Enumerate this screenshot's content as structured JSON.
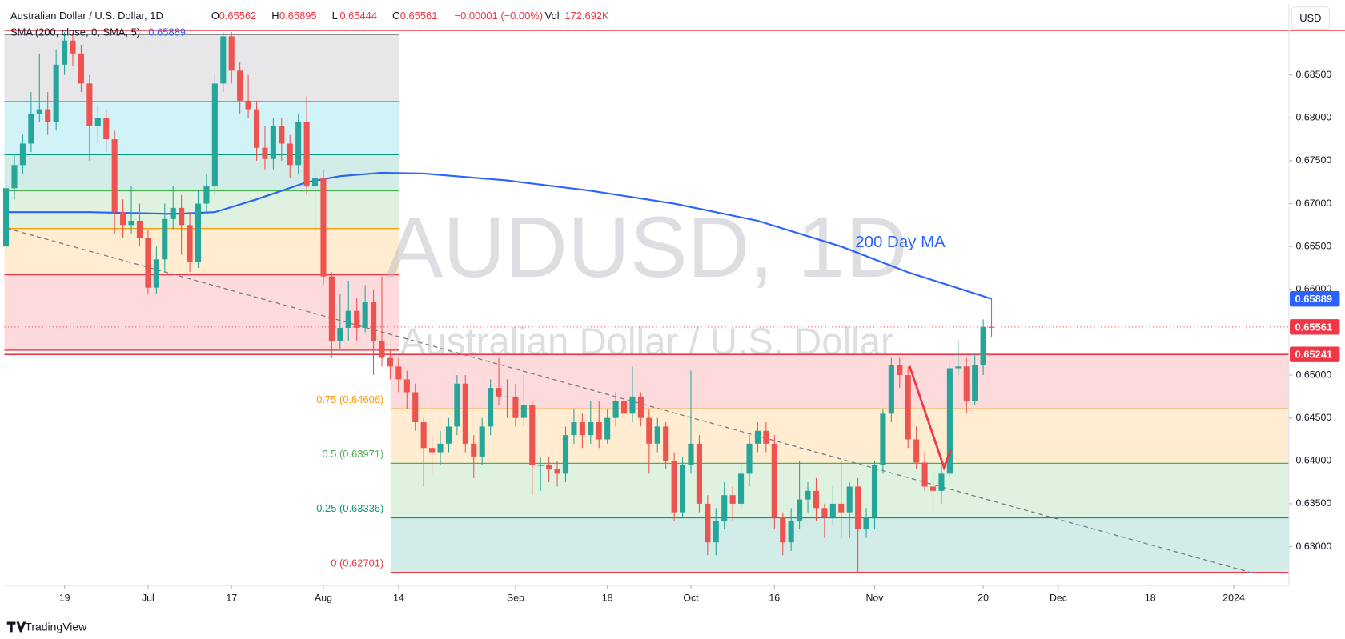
{
  "header": {
    "symbol": "Australian Dollar / U.S. Dollar, 1D",
    "ohlc": [
      {
        "label": "O",
        "value": "0.65562"
      },
      {
        "label": "H",
        "value": "0.65895"
      },
      {
        "label": "L",
        "value": "0.65444"
      },
      {
        "label": "C",
        "value": "0.65561"
      }
    ],
    "change": "−0.00001 (−0.00%)",
    "volume_label": "Vol",
    "volume": "172.692K"
  },
  "footer": {
    "brand": "TradingView"
  },
  "chart_data": {
    "type": "candlestick",
    "title": "AUDUSD, 1D",
    "subtitle": "Australian Dollar / U.S. Dollar",
    "currency": "USD",
    "xlim": [
      -0.2,
      153.6
    ],
    "xticks": [
      {
        "value": 7,
        "label": "19"
      },
      {
        "value": 17,
        "label": "Jul"
      },
      {
        "value": 27,
        "label": "17"
      },
      {
        "value": 38,
        "label": "Aug"
      },
      {
        "value": 47,
        "label": "14"
      },
      {
        "value": 61,
        "label": "Sep"
      },
      {
        "value": 72,
        "label": "18"
      },
      {
        "value": 82,
        "label": "Oct"
      },
      {
        "value": 92,
        "label": "16"
      },
      {
        "value": 104,
        "label": "Nov"
      },
      {
        "value": 117,
        "label": "20"
      },
      {
        "value": 126,
        "label": "Dec"
      },
      {
        "value": 137,
        "label": "18"
      },
      {
        "value": 147,
        "label": "2024"
      }
    ],
    "ylim": [
      0.62546,
      0.69323
    ],
    "yticks": [
      {
        "value": 0.685,
        "label": "0.68500"
      },
      {
        "value": 0.68,
        "label": "0.68000"
      },
      {
        "value": 0.675,
        "label": "0.67500"
      },
      {
        "value": 0.67,
        "label": "0.67000"
      },
      {
        "value": 0.665,
        "label": "0.66500"
      },
      {
        "value": 0.66,
        "label": "0.66000"
      },
      {
        "value": 0.65,
        "label": "0.65000"
      },
      {
        "value": 0.645,
        "label": "0.64500"
      },
      {
        "value": 0.64,
        "label": "0.64000"
      },
      {
        "value": 0.635,
        "label": "0.63500"
      },
      {
        "value": 0.63,
        "label": "0.63000"
      }
    ],
    "series": [
      {
        "name": "AUDUSD",
        "up_color": "#26a69a",
        "down_color": "#ef5350",
        "open": [
          0.665,
          0.6718,
          0.6745,
          0.677,
          0.6805,
          0.681,
          0.6795,
          0.6862,
          0.689,
          0.6875,
          0.684,
          0.679,
          0.68,
          0.6775,
          0.669,
          0.6675,
          0.668,
          0.666,
          0.6602,
          0.6635,
          0.6682,
          0.6695,
          0.6675,
          0.6632,
          0.67,
          0.672,
          0.684,
          0.6895,
          0.6855,
          0.682,
          0.681,
          0.6765,
          0.6752,
          0.679,
          0.677,
          0.6745,
          0.6795,
          0.672,
          0.673,
          0.6615,
          0.654,
          0.6555,
          0.6575,
          0.6555,
          0.6585,
          0.654,
          0.652,
          0.651,
          0.6495,
          0.648,
          0.6445,
          0.6415,
          0.641,
          0.642,
          0.644,
          0.649,
          0.642,
          0.6405,
          0.644,
          0.6485,
          0.6475,
          0.6475,
          0.645,
          0.6465,
          0.6395,
          0.6395,
          0.639,
          0.6385,
          0.643,
          0.6445,
          0.643,
          0.6445,
          0.6425,
          0.645,
          0.647,
          0.6455,
          0.6475,
          0.645,
          0.642,
          0.644,
          0.64,
          0.634,
          0.6395,
          0.642,
          0.635,
          0.6305,
          0.633,
          0.636,
          0.635,
          0.6385,
          0.642,
          0.6435,
          0.642,
          0.6335,
          0.6305,
          0.633,
          0.6355,
          0.6365,
          0.6345,
          0.6335,
          0.635,
          0.634,
          0.637,
          0.632,
          0.6335,
          0.6395,
          0.6455,
          0.6512,
          0.65,
          0.6425,
          0.6398,
          0.637,
          0.6365,
          0.6385,
          0.6508,
          0.651,
          0.647,
          0.6512,
          0.65562
        ],
        "high": [
          0.6728,
          0.6758,
          0.678,
          0.683,
          0.6875,
          0.683,
          0.688,
          0.69,
          0.69,
          0.6885,
          0.685,
          0.6815,
          0.681,
          0.6785,
          0.6705,
          0.672,
          0.67,
          0.667,
          0.665,
          0.67,
          0.672,
          0.671,
          0.669,
          0.6715,
          0.6735,
          0.685,
          0.69,
          0.69,
          0.6865,
          0.685,
          0.682,
          0.679,
          0.68,
          0.68,
          0.678,
          0.6805,
          0.6825,
          0.674,
          0.674,
          0.662,
          0.6595,
          0.661,
          0.659,
          0.6605,
          0.66,
          0.6615,
          0.653,
          0.652,
          0.6505,
          0.649,
          0.645,
          0.643,
          0.6435,
          0.645,
          0.65,
          0.65,
          0.643,
          0.645,
          0.6495,
          0.652,
          0.6495,
          0.649,
          0.65,
          0.647,
          0.6405,
          0.6405,
          0.64,
          0.644,
          0.646,
          0.6455,
          0.647,
          0.647,
          0.646,
          0.648,
          0.648,
          0.651,
          0.648,
          0.646,
          0.645,
          0.6445,
          0.641,
          0.6405,
          0.6505,
          0.643,
          0.636,
          0.6345,
          0.6375,
          0.637,
          0.64,
          0.643,
          0.6445,
          0.6445,
          0.643,
          0.634,
          0.6345,
          0.64,
          0.6375,
          0.638,
          0.635,
          0.637,
          0.64,
          0.6375,
          0.638,
          0.6345,
          0.64,
          0.646,
          0.652,
          0.652,
          0.651,
          0.644,
          0.641,
          0.6385,
          0.6395,
          0.6515,
          0.654,
          0.652,
          0.6525,
          0.6565,
          0.65895
        ],
        "low": [
          0.664,
          0.6705,
          0.6735,
          0.676,
          0.6795,
          0.678,
          0.6785,
          0.685,
          0.686,
          0.683,
          0.675,
          0.677,
          0.676,
          0.6665,
          0.666,
          0.6665,
          0.665,
          0.6595,
          0.6595,
          0.662,
          0.667,
          0.664,
          0.662,
          0.6625,
          0.669,
          0.671,
          0.683,
          0.684,
          0.6805,
          0.68,
          0.675,
          0.674,
          0.674,
          0.675,
          0.673,
          0.6735,
          0.671,
          0.666,
          0.6605,
          0.652,
          0.653,
          0.654,
          0.654,
          0.655,
          0.65,
          0.651,
          0.6495,
          0.648,
          0.646,
          0.6435,
          0.637,
          0.6385,
          0.6395,
          0.641,
          0.643,
          0.641,
          0.638,
          0.6395,
          0.643,
          0.6465,
          0.645,
          0.644,
          0.644,
          0.636,
          0.6365,
          0.6375,
          0.637,
          0.6375,
          0.642,
          0.6415,
          0.642,
          0.6415,
          0.642,
          0.644,
          0.6445,
          0.6445,
          0.644,
          0.6385,
          0.641,
          0.639,
          0.633,
          0.6335,
          0.6385,
          0.634,
          0.629,
          0.629,
          0.632,
          0.633,
          0.6345,
          0.637,
          0.641,
          0.641,
          0.632,
          0.629,
          0.6295,
          0.632,
          0.634,
          0.633,
          0.631,
          0.6325,
          0.631,
          0.631,
          0.627,
          0.631,
          0.632,
          0.6385,
          0.6445,
          0.6485,
          0.6415,
          0.639,
          0.6365,
          0.634,
          0.635,
          0.638,
          0.65,
          0.6455,
          0.6465,
          0.65,
          0.65444
        ],
        "close": [
          0.6718,
          0.6745,
          0.677,
          0.6805,
          0.681,
          0.6795,
          0.6862,
          0.689,
          0.6875,
          0.684,
          0.679,
          0.68,
          0.6775,
          0.669,
          0.6675,
          0.668,
          0.666,
          0.6602,
          0.6635,
          0.6682,
          0.6695,
          0.6675,
          0.6632,
          0.67,
          0.672,
          0.684,
          0.6895,
          0.6855,
          0.682,
          0.681,
          0.6765,
          0.6752,
          0.679,
          0.677,
          0.6745,
          0.6795,
          0.672,
          0.673,
          0.6615,
          0.654,
          0.6555,
          0.6575,
          0.6555,
          0.6585,
          0.654,
          0.652,
          0.651,
          0.6495,
          0.648,
          0.6445,
          0.6415,
          0.641,
          0.642,
          0.644,
          0.649,
          0.642,
          0.6405,
          0.644,
          0.6485,
          0.6475,
          0.6475,
          0.645,
          0.6465,
          0.6395,
          0.6395,
          0.639,
          0.6385,
          0.643,
          0.6445,
          0.643,
          0.6445,
          0.6425,
          0.645,
          0.647,
          0.6455,
          0.6475,
          0.645,
          0.642,
          0.644,
          0.64,
          0.634,
          0.6395,
          0.642,
          0.635,
          0.6305,
          0.633,
          0.636,
          0.635,
          0.6385,
          0.642,
          0.6435,
          0.642,
          0.6335,
          0.6305,
          0.633,
          0.6355,
          0.6365,
          0.6345,
          0.6335,
          0.635,
          0.634,
          0.637,
          0.632,
          0.6335,
          0.6395,
          0.6455,
          0.6512,
          0.65,
          0.6425,
          0.6398,
          0.637,
          0.6365,
          0.6385,
          0.6508,
          0.651,
          0.647,
          0.6512,
          0.6556,
          0.65561
        ]
      }
    ],
    "moving_average": {
      "name": "SMA (200, close, 0, SMA, 5)",
      "value_label": "0.65889",
      "color": "#2962ff",
      "annotation": "200 Day MA",
      "x": [
        0,
        10,
        20,
        25,
        30,
        36,
        40,
        45,
        50,
        60,
        70,
        80,
        90,
        100,
        108,
        118
      ],
      "values": [
        0.669,
        0.669,
        0.6688,
        0.669,
        0.6705,
        0.6725,
        0.6732,
        0.6736,
        0.6735,
        0.6727,
        0.6715,
        0.67,
        0.668,
        0.665,
        0.662,
        0.65889
      ]
    },
    "price_labels": [
      {
        "value": 0.65889,
        "label": "0.65889",
        "color": "#2962ff",
        "line": "none"
      },
      {
        "value": 0.65561,
        "label": "0.65561",
        "color": "#f23645",
        "line": "dotted"
      },
      {
        "value": 0.65241,
        "label": "0.65241",
        "color": "#f23645",
        "line": "solid"
      }
    ],
    "horizontal_lines": [
      {
        "value": 0.6902,
        "color": "#f23645"
      }
    ],
    "fib_left": {
      "levels": [
        0.6897,
        0.6819,
        0.6757,
        0.6715,
        0.6671,
        0.6617,
        0.6529
      ],
      "colors": [
        "#787b86",
        "#00bcd4",
        "#089981",
        "#4caf50",
        "#ff9800",
        "#f23645",
        "#f23645"
      ]
    },
    "fib_right": {
      "levels": [
        0.65241,
        {
          "value": 0.64606,
          "label": "0.75 (0.64606)"
        },
        {
          "value": 0.63971,
          "label": "0.5 (0.63971)"
        },
        {
          "value": 0.63336,
          "label": "0.25 (0.63336)"
        },
        {
          "value": 0.62701,
          "label": "0 (0.62701)"
        }
      ],
      "colors": [
        "#f23645",
        "#ff9800",
        "#4caf50",
        "#089981",
        "#f23645"
      ]
    }
  }
}
